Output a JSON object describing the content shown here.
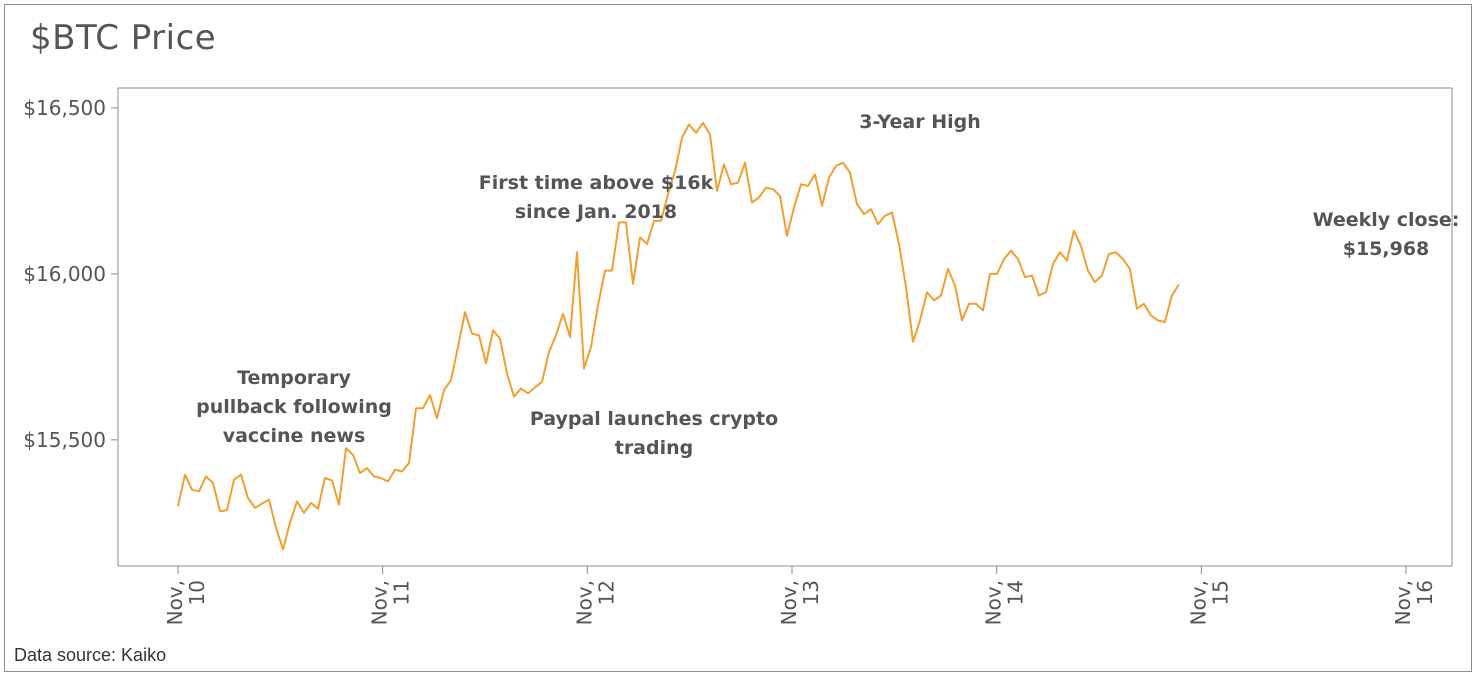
{
  "title": "$BTC Price",
  "source": "Data source: Kaiko",
  "colors": {
    "line": "#f0a030",
    "axis": "#555555",
    "frame": "#8c8c8c"
  },
  "chart_data": {
    "type": "line",
    "title": "$BTC Price",
    "xlabel": "",
    "ylabel": "",
    "xlim": [
      10,
      16
    ],
    "ylim": [
      15120,
      16560
    ],
    "grid": false,
    "y_ticks": [
      {
        "value": 15500,
        "label": "$15,500"
      },
      {
        "value": 16000,
        "label": "$16,000"
      },
      {
        "value": 16500,
        "label": "$16,500"
      }
    ],
    "x_ticks": [
      {
        "value": 10,
        "line1": "Nov,",
        "line2": "10"
      },
      {
        "value": 11,
        "line1": "Nov,",
        "line2": "11"
      },
      {
        "value": 12,
        "line1": "Nov,",
        "line2": "12"
      },
      {
        "value": 13,
        "line1": "Nov,",
        "line2": "13"
      },
      {
        "value": 14,
        "line1": "Nov,",
        "line2": "14"
      },
      {
        "value": 15,
        "line1": "Nov,",
        "line2": "15"
      },
      {
        "value": 16,
        "line1": "Nov,",
        "line2": "16"
      }
    ],
    "series": [
      {
        "name": "BTC Price",
        "x_start": 10.0,
        "x_step": 0.0342,
        "values": [
          15300,
          15395,
          15350,
          15345,
          15390,
          15370,
          15285,
          15288,
          15380,
          15395,
          15325,
          15295,
          15308,
          15320,
          15235,
          15170,
          15250,
          15315,
          15280,
          15310,
          15292,
          15385,
          15378,
          15305,
          15475,
          15455,
          15400,
          15415,
          15390,
          15385,
          15375,
          15410,
          15405,
          15430,
          15595,
          15595,
          15635,
          15565,
          15650,
          15680,
          15780,
          15885,
          15820,
          15815,
          15730,
          15830,
          15805,
          15700,
          15630,
          15655,
          15640,
          15658,
          15675,
          15765,
          15815,
          15880,
          15810,
          16065,
          15715,
          15780,
          15905,
          16010,
          16010,
          16155,
          16155,
          15970,
          16110,
          16090,
          16160,
          16160,
          16240,
          16310,
          16410,
          16450,
          16425,
          16455,
          16420,
          16250,
          16330,
          16270,
          16275,
          16335,
          16215,
          16230,
          16260,
          16255,
          16235,
          16115,
          16200,
          16270,
          16265,
          16300,
          16205,
          16290,
          16325,
          16335,
          16305,
          16210,
          16180,
          16195,
          16150,
          16175,
          16185,
          16090,
          15960,
          15795,
          15860,
          15945,
          15920,
          15935,
          16015,
          15965,
          15860,
          15910,
          15910,
          15890,
          16000,
          16000,
          16045,
          16070,
          16045,
          15990,
          15995,
          15935,
          15945,
          16030,
          16065,
          16040,
          16130,
          16085,
          16010,
          15975,
          15995,
          16060,
          16065,
          16045,
          16015,
          15895,
          15910,
          15875,
          15860,
          15855,
          15935,
          15968
        ]
      }
    ],
    "annotations": [
      {
        "lines": [
          "Temporary",
          "pullback following",
          "vaccine news"
        ]
      },
      {
        "lines": [
          "First time above $16k",
          "since Jan. 2018"
        ]
      },
      {
        "lines": [
          "Paypal launches crypto",
          "trading"
        ]
      },
      {
        "lines": [
          "3-Year High"
        ]
      },
      {
        "lines": [
          "Weekly close:",
          "$15,968"
        ]
      }
    ]
  }
}
